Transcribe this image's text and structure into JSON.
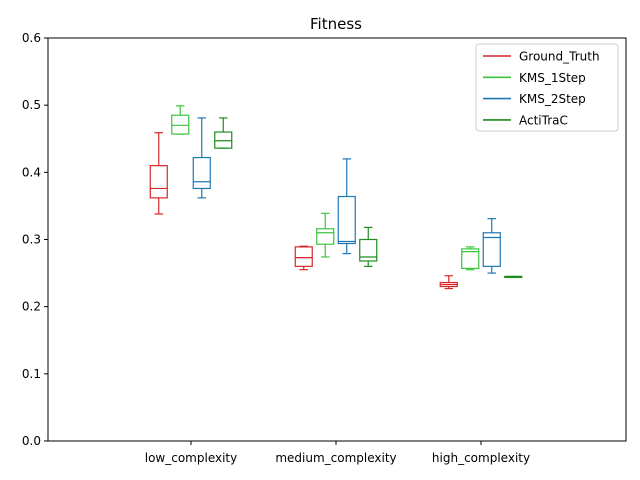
{
  "chart_data": {
    "type": "box",
    "title": "Fitness",
    "xlabel": "",
    "ylabel": "",
    "ylim": [
      0,
      0.6
    ],
    "yticks": [
      "0.0",
      "0.1",
      "0.2",
      "0.3",
      "0.4",
      "0.5",
      "0.6"
    ],
    "categories": [
      "low_complexity",
      "medium_complexity",
      "high_complexity"
    ],
    "legend_position": "top-right",
    "grid": false,
    "series": [
      {
        "name": "Ground_Truth",
        "color": "#d62728",
        "boxes": [
          {
            "whisker_low": 0.338,
            "q1": 0.362,
            "median": 0.376,
            "q3": 0.41,
            "whisker_high": 0.459
          },
          {
            "whisker_low": 0.255,
            "q1": 0.26,
            "median": 0.273,
            "q3": 0.289,
            "whisker_high": 0.29
          },
          {
            "whisker_low": 0.227,
            "q1": 0.23,
            "median": 0.233,
            "q3": 0.236,
            "whisker_high": 0.246
          }
        ]
      },
      {
        "name": "KMS_1Step",
        "color": "#3cc43c",
        "boxes": [
          {
            "whisker_low": 0.457,
            "q1": 0.457,
            "median": 0.47,
            "q3": 0.485,
            "whisker_high": 0.499
          },
          {
            "whisker_low": 0.274,
            "q1": 0.293,
            "median": 0.31,
            "q3": 0.316,
            "whisker_high": 0.339
          },
          {
            "whisker_low": 0.255,
            "q1": 0.257,
            "median": 0.282,
            "q3": 0.286,
            "whisker_high": 0.289
          }
        ]
      },
      {
        "name": "KMS_2Step",
        "color": "#1f77b4",
        "boxes": [
          {
            "whisker_low": 0.362,
            "q1": 0.376,
            "median": 0.386,
            "q3": 0.422,
            "whisker_high": 0.481
          },
          {
            "whisker_low": 0.279,
            "q1": 0.294,
            "median": 0.297,
            "q3": 0.364,
            "whisker_high": 0.42
          },
          {
            "whisker_low": 0.25,
            "q1": 0.26,
            "median": 0.303,
            "q3": 0.31,
            "whisker_high": 0.331
          }
        ]
      },
      {
        "name": "ActiTraC",
        "color": "#1e8c1e",
        "boxes": [
          {
            "whisker_low": 0.436,
            "q1": 0.436,
            "median": 0.447,
            "q3": 0.46,
            "whisker_high": 0.481
          },
          {
            "whisker_low": 0.26,
            "q1": 0.268,
            "median": 0.274,
            "q3": 0.3,
            "whisker_high": 0.318
          },
          {
            "whisker_low": 0.244,
            "q1": 0.244,
            "median": 0.245,
            "q3": 0.245,
            "whisker_high": 0.245
          }
        ]
      }
    ]
  }
}
